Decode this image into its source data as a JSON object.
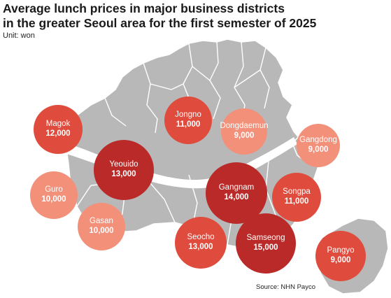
{
  "title": {
    "line1": "Average lunch prices in major business districts",
    "line2": "in the greater Seoul area for the first semester of 2025"
  },
  "unit": "Unit: won",
  "source": "Source: NHN Payco",
  "colors": {
    "map_fill": "#b8b8b8",
    "district_border": "#ffffff",
    "river": "#ffffff",
    "tier_low": "#f3907a",
    "tier_mid": "#df4b3c",
    "tier_high": "#b92a28"
  },
  "districts": [
    {
      "name": "Magok",
      "price": "12,000",
      "tier": "tier_mid"
    },
    {
      "name": "Jongno",
      "price": "11,000",
      "tier": "tier_mid"
    },
    {
      "name": "Dongdaemun",
      "price": "9,000",
      "tier": "tier_low"
    },
    {
      "name": "Gangdong",
      "price": "9,000",
      "tier": "tier_low"
    },
    {
      "name": "Yeouido",
      "price": "13,000",
      "tier": "tier_high"
    },
    {
      "name": "Guro",
      "price": "10,000",
      "tier": "tier_low"
    },
    {
      "name": "Gangnam",
      "price": "14,000",
      "tier": "tier_high"
    },
    {
      "name": "Songpa",
      "price": "11,000",
      "tier": "tier_mid"
    },
    {
      "name": "Gasan",
      "price": "10,000",
      "tier": "tier_low"
    },
    {
      "name": "Seocho",
      "price": "13,000",
      "tier": "tier_mid"
    },
    {
      "name": "Samseong",
      "price": "15,000",
      "tier": "tier_high"
    },
    {
      "name": "Pangyo",
      "price": "9,000",
      "tier": "tier_mid"
    }
  ]
}
